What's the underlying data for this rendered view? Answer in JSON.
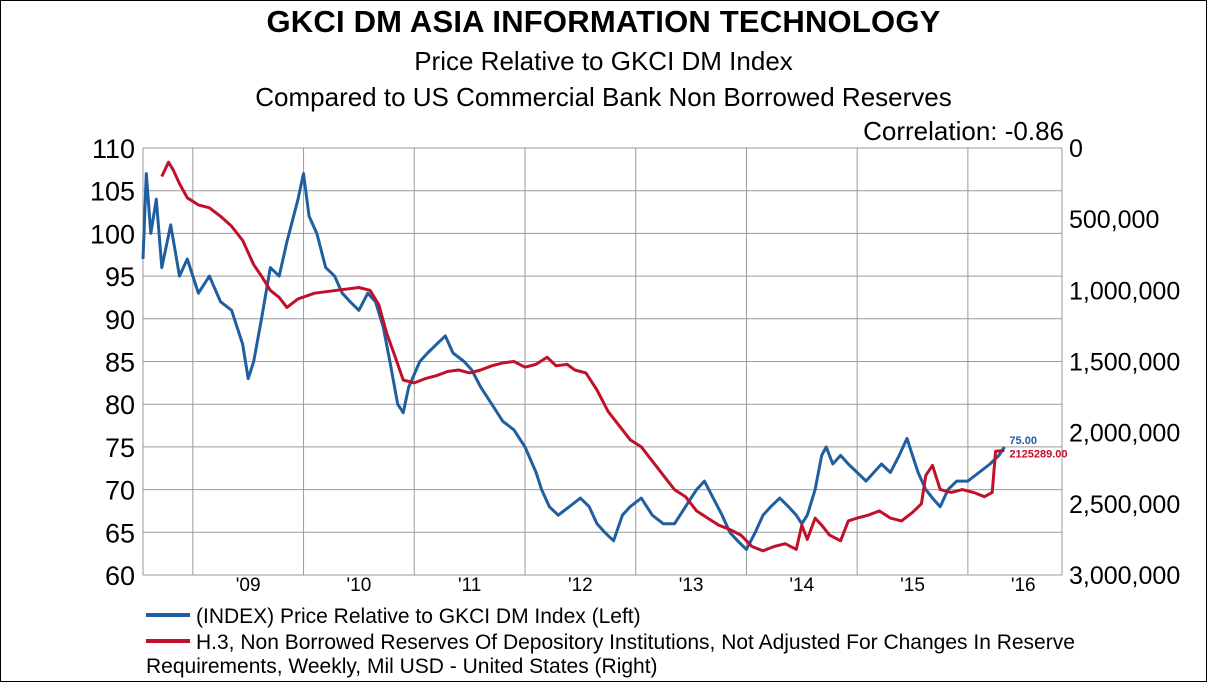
{
  "chart_data": {
    "type": "line",
    "title": "GKCI DM ASIA INFORMATION TECHNOLOGY",
    "subtitle": [
      "Price Relative to GKCI DM Index",
      "Compared to US Commercial Bank Non Borrowed Reserves"
    ],
    "annotation": "Correlation: -0.86",
    "x_tick_labels": [
      "'09",
      "'10",
      "'11",
      "'12",
      "'13",
      "'14",
      "'15",
      "'16"
    ],
    "x_range": [
      2008.55,
      2016.85
    ],
    "y_left": {
      "range": [
        60,
        110
      ],
      "ticks": [
        60,
        65,
        70,
        75,
        80,
        85,
        90,
        95,
        100,
        105,
        110
      ]
    },
    "y_right": {
      "range": [
        0,
        3000000
      ],
      "inverted": true,
      "tick_labels": [
        "0",
        "500,000",
        "1,000,000",
        "1,500,000",
        "2,000,000",
        "2,500,000",
        "3,000,000"
      ],
      "ticks": [
        0,
        500000,
        1000000,
        1500000,
        2000000,
        2500000,
        3000000
      ]
    },
    "grid": true,
    "legend_position": "bottom",
    "series": [
      {
        "name": "(INDEX) Price Relative to GKCI DM Index  (Left)",
        "axis": "left",
        "color": "#1f5fa0",
        "last_label": "75.00",
        "points": [
          [
            2008.55,
            97
          ],
          [
            2008.58,
            107
          ],
          [
            2008.62,
            100
          ],
          [
            2008.67,
            104
          ],
          [
            2008.72,
            96
          ],
          [
            2008.8,
            101
          ],
          [
            2008.88,
            95
          ],
          [
            2008.95,
            97
          ],
          [
            2009.05,
            93
          ],
          [
            2009.15,
            95
          ],
          [
            2009.25,
            92
          ],
          [
            2009.35,
            91
          ],
          [
            2009.45,
            87
          ],
          [
            2009.5,
            83
          ],
          [
            2009.55,
            85
          ],
          [
            2009.62,
            90
          ],
          [
            2009.7,
            96
          ],
          [
            2009.78,
            95
          ],
          [
            2009.85,
            99
          ],
          [
            2009.95,
            104
          ],
          [
            2010.0,
            107
          ],
          [
            2010.05,
            102
          ],
          [
            2010.12,
            100
          ],
          [
            2010.2,
            96
          ],
          [
            2010.28,
            95
          ],
          [
            2010.35,
            93
          ],
          [
            2010.42,
            92
          ],
          [
            2010.5,
            91
          ],
          [
            2010.58,
            93
          ],
          [
            2010.65,
            92
          ],
          [
            2010.72,
            89
          ],
          [
            2010.78,
            85
          ],
          [
            2010.85,
            80
          ],
          [
            2010.9,
            79
          ],
          [
            2010.95,
            82
          ],
          [
            2011.05,
            85
          ],
          [
            2011.12,
            86
          ],
          [
            2011.2,
            87
          ],
          [
            2011.28,
            88
          ],
          [
            2011.35,
            86
          ],
          [
            2011.45,
            85
          ],
          [
            2011.52,
            84
          ],
          [
            2011.6,
            82
          ],
          [
            2011.7,
            80
          ],
          [
            2011.8,
            78
          ],
          [
            2011.9,
            77
          ],
          [
            2012.0,
            75
          ],
          [
            2012.1,
            72
          ],
          [
            2012.15,
            70
          ],
          [
            2012.22,
            68
          ],
          [
            2012.3,
            67
          ],
          [
            2012.4,
            68
          ],
          [
            2012.5,
            69
          ],
          [
            2012.58,
            68
          ],
          [
            2012.65,
            66
          ],
          [
            2012.72,
            65
          ],
          [
            2012.8,
            64
          ],
          [
            2012.88,
            67
          ],
          [
            2012.95,
            68
          ],
          [
            2013.05,
            69
          ],
          [
            2013.15,
            67
          ],
          [
            2013.25,
            66
          ],
          [
            2013.35,
            66
          ],
          [
            2013.45,
            68
          ],
          [
            2013.55,
            70
          ],
          [
            2013.62,
            71
          ],
          [
            2013.7,
            69
          ],
          [
            2013.78,
            67
          ],
          [
            2013.85,
            65
          ],
          [
            2013.92,
            64
          ],
          [
            2014.0,
            63
          ],
          [
            2014.08,
            65
          ],
          [
            2014.15,
            67
          ],
          [
            2014.22,
            68
          ],
          [
            2014.3,
            69
          ],
          [
            2014.38,
            68
          ],
          [
            2014.45,
            67
          ],
          [
            2014.5,
            66
          ],
          [
            2014.55,
            67
          ],
          [
            2014.62,
            70
          ],
          [
            2014.68,
            74
          ],
          [
            2014.72,
            75
          ],
          [
            2014.78,
            73
          ],
          [
            2014.85,
            74
          ],
          [
            2014.92,
            73
          ],
          [
            2015.0,
            72
          ],
          [
            2015.08,
            71
          ],
          [
            2015.15,
            72
          ],
          [
            2015.22,
            73
          ],
          [
            2015.3,
            72
          ],
          [
            2015.38,
            74
          ],
          [
            2015.45,
            76
          ],
          [
            2015.5,
            74
          ],
          [
            2015.55,
            72
          ],
          [
            2015.62,
            70
          ],
          [
            2015.68,
            69
          ],
          [
            2015.75,
            68
          ],
          [
            2015.82,
            70
          ],
          [
            2015.9,
            71
          ],
          [
            2016.0,
            71
          ],
          [
            2016.1,
            72
          ],
          [
            2016.2,
            73
          ],
          [
            2016.28,
            74
          ],
          [
            2016.33,
            75
          ]
        ]
      },
      {
        "name": "H.3, Non Borrowed Reserves Of Depository Institutions, Not Adjusted For Changes In Reserve Requirements, Weekly, Mil USD - United States  (Right)",
        "axis": "right",
        "color": "#c0102a",
        "last_label": "2125289.00",
        "points": [
          [
            2008.72,
            200000
          ],
          [
            2008.78,
            100000
          ],
          [
            2008.82,
            150000
          ],
          [
            2008.88,
            250000
          ],
          [
            2008.95,
            350000
          ],
          [
            2009.05,
            400000
          ],
          [
            2009.15,
            420000
          ],
          [
            2009.25,
            480000
          ],
          [
            2009.35,
            550000
          ],
          [
            2009.45,
            650000
          ],
          [
            2009.55,
            820000
          ],
          [
            2009.62,
            900000
          ],
          [
            2009.7,
            1000000
          ],
          [
            2009.78,
            1050000
          ],
          [
            2009.85,
            1120000
          ],
          [
            2009.95,
            1060000
          ],
          [
            2010.1,
            1020000
          ],
          [
            2010.3,
            1000000
          ],
          [
            2010.5,
            980000
          ],
          [
            2010.6,
            1000000
          ],
          [
            2010.68,
            1100000
          ],
          [
            2010.75,
            1300000
          ],
          [
            2010.82,
            1450000
          ],
          [
            2010.9,
            1630000
          ],
          [
            2011.0,
            1650000
          ],
          [
            2011.1,
            1620000
          ],
          [
            2011.2,
            1600000
          ],
          [
            2011.3,
            1570000
          ],
          [
            2011.4,
            1560000
          ],
          [
            2011.5,
            1580000
          ],
          [
            2011.6,
            1560000
          ],
          [
            2011.7,
            1530000
          ],
          [
            2011.8,
            1510000
          ],
          [
            2011.9,
            1500000
          ],
          [
            2012.0,
            1540000
          ],
          [
            2012.1,
            1520000
          ],
          [
            2012.2,
            1470000
          ],
          [
            2012.28,
            1530000
          ],
          [
            2012.38,
            1520000
          ],
          [
            2012.45,
            1560000
          ],
          [
            2012.55,
            1580000
          ],
          [
            2012.65,
            1700000
          ],
          [
            2012.75,
            1850000
          ],
          [
            2012.85,
            1950000
          ],
          [
            2012.95,
            2050000
          ],
          [
            2013.05,
            2100000
          ],
          [
            2013.15,
            2200000
          ],
          [
            2013.25,
            2300000
          ],
          [
            2013.35,
            2400000
          ],
          [
            2013.45,
            2450000
          ],
          [
            2013.55,
            2550000
          ],
          [
            2013.65,
            2600000
          ],
          [
            2013.75,
            2650000
          ],
          [
            2013.85,
            2680000
          ],
          [
            2013.95,
            2720000
          ],
          [
            2014.05,
            2800000
          ],
          [
            2014.15,
            2830000
          ],
          [
            2014.25,
            2800000
          ],
          [
            2014.35,
            2780000
          ],
          [
            2014.45,
            2820000
          ],
          [
            2014.5,
            2650000
          ],
          [
            2014.55,
            2750000
          ],
          [
            2014.62,
            2600000
          ],
          [
            2014.68,
            2650000
          ],
          [
            2014.75,
            2720000
          ],
          [
            2014.85,
            2760000
          ],
          [
            2014.92,
            2620000
          ],
          [
            2015.0,
            2600000
          ],
          [
            2015.1,
            2580000
          ],
          [
            2015.2,
            2550000
          ],
          [
            2015.3,
            2600000
          ],
          [
            2015.4,
            2620000
          ],
          [
            2015.5,
            2560000
          ],
          [
            2015.58,
            2500000
          ],
          [
            2015.62,
            2300000
          ],
          [
            2015.68,
            2230000
          ],
          [
            2015.75,
            2400000
          ],
          [
            2015.85,
            2420000
          ],
          [
            2015.95,
            2400000
          ],
          [
            2016.05,
            2420000
          ],
          [
            2016.15,
            2450000
          ],
          [
            2016.22,
            2420000
          ],
          [
            2016.25,
            2130000
          ],
          [
            2016.33,
            2125289
          ]
        ]
      }
    ]
  }
}
